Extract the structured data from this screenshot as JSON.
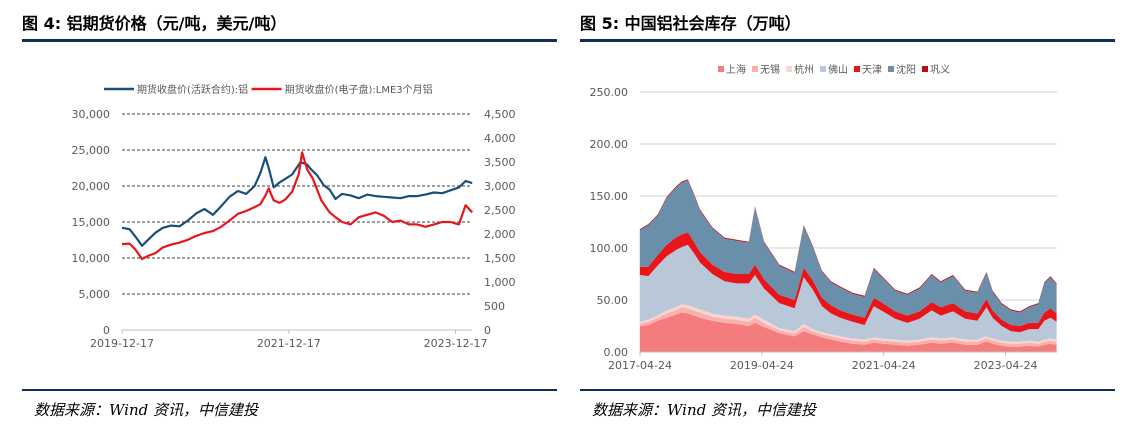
{
  "left_panel": {
    "title": "图 4: 铝期货价格（元/吨，美元/吨）",
    "source": "数据来源：Wind 资讯，中信建投"
  },
  "right_panel": {
    "title": "图 5: 中国铝社会库存（万吨）",
    "source": "数据来源：Wind 资讯，中信建投"
  },
  "chart_data": [
    {
      "type": "line",
      "title": "",
      "dual_axis": true,
      "x_tick_labels": [
        "2019-12-17",
        "2021-12-17",
        "2023-12-17"
      ],
      "x_range": [
        "2019-12-17",
        "2024-02-28"
      ],
      "y_left_ticks": [
        "30,000",
        "25,000",
        "20,000",
        "15,000",
        "10,000",
        "5,000",
        "0"
      ],
      "y_left_lim": [
        0,
        30000
      ],
      "y_right_ticks": [
        "4,500",
        "4,000",
        "3,500",
        "3,000",
        "2,500",
        "2,000",
        "1,500",
        "1,000",
        "500",
        "0"
      ],
      "y_right_lim": [
        0,
        4500
      ],
      "grid": "dashed-horizontal",
      "legend": "top",
      "series": [
        {
          "name": "期货收盘价(活跃合约):铝",
          "axis": "left",
          "color": "#1a4f7a",
          "x": [
            2019.96,
            2020.05,
            2020.12,
            2020.2,
            2020.28,
            2020.36,
            2020.45,
            2020.55,
            2020.65,
            2020.75,
            2020.85,
            2020.95,
            2021.05,
            2021.15,
            2021.25,
            2021.35,
            2021.45,
            2021.55,
            2021.62,
            2021.68,
            2021.72,
            2021.78,
            2021.85,
            2021.92,
            2022.0,
            2022.1,
            2022.18,
            2022.22,
            2022.3,
            2022.38,
            2022.45,
            2022.52,
            2022.6,
            2022.7,
            2022.8,
            2022.9,
            2023.0,
            2023.1,
            2023.2,
            2023.3,
            2023.4,
            2023.5,
            2023.6,
            2023.7,
            2023.8,
            2023.9,
            2024.0,
            2024.08,
            2024.16
          ],
          "values": [
            14200,
            14000,
            13000,
            11700,
            12600,
            13500,
            14200,
            14500,
            14400,
            15200,
            16200,
            16800,
            16000,
            17200,
            18500,
            19300,
            18900,
            20000,
            21800,
            24000,
            22500,
            19800,
            20500,
            21000,
            21600,
            23300,
            23000,
            22400,
            21500,
            20100,
            19500,
            18200,
            18900,
            18700,
            18300,
            18800,
            18600,
            18500,
            18400,
            18300,
            18600,
            18600,
            18800,
            19100,
            19000,
            19400,
            19800,
            20700,
            20400
          ]
        },
        {
          "name": "期货收盘价(电子盘):LME3个月铝",
          "axis": "right",
          "color": "#e8151b",
          "x": [
            2019.96,
            2020.05,
            2020.12,
            2020.2,
            2020.28,
            2020.36,
            2020.45,
            2020.55,
            2020.65,
            2020.75,
            2020.85,
            2020.95,
            2021.05,
            2021.15,
            2021.25,
            2021.35,
            2021.45,
            2021.55,
            2021.62,
            2021.68,
            2021.72,
            2021.78,
            2021.85,
            2021.92,
            2022.0,
            2022.08,
            2022.12,
            2022.18,
            2022.25,
            2022.35,
            2022.45,
            2022.52,
            2022.6,
            2022.7,
            2022.8,
            2022.9,
            2023.0,
            2023.1,
            2023.2,
            2023.3,
            2023.4,
            2023.5,
            2023.6,
            2023.7,
            2023.8,
            2023.9,
            2024.0,
            2024.08,
            2024.16
          ],
          "values": [
            1790,
            1800,
            1680,
            1480,
            1550,
            1600,
            1720,
            1780,
            1820,
            1880,
            1960,
            2020,
            2060,
            2150,
            2280,
            2420,
            2480,
            2560,
            2620,
            2800,
            2950,
            2700,
            2650,
            2720,
            2880,
            3250,
            3700,
            3350,
            3150,
            2700,
            2450,
            2350,
            2250,
            2200,
            2350,
            2400,
            2450,
            2380,
            2250,
            2280,
            2200,
            2200,
            2150,
            2200,
            2250,
            2250,
            2200,
            2600,
            2450
          ]
        }
      ]
    },
    {
      "type": "area",
      "stacked": true,
      "title": "",
      "x_tick_labels": [
        "2017-04-24",
        "2019-04-24",
        "2021-04-24",
        "2023-04-24"
      ],
      "x_range": [
        "2017-04-24",
        "2024-02-28"
      ],
      "y_ticks": [
        "250.00",
        "200.00",
        "150.00",
        "100.00",
        "50.00",
        "0.00"
      ],
      "ylim": [
        0,
        250
      ],
      "grid": "solid-horizontal",
      "legend": "top",
      "x": [
        2017.31,
        2017.45,
        2017.6,
        2017.75,
        2017.9,
        2018.0,
        2018.1,
        2018.2,
        2018.3,
        2018.5,
        2018.7,
        2018.9,
        2019.1,
        2019.2,
        2019.35,
        2019.6,
        2019.85,
        2020.0,
        2020.15,
        2020.3,
        2020.45,
        2020.6,
        2020.8,
        2021.0,
        2021.15,
        2021.3,
        2021.5,
        2021.7,
        2021.9,
        2022.1,
        2022.25,
        2022.45,
        2022.65,
        2022.85,
        2023.0,
        2023.1,
        2023.25,
        2023.4,
        2023.55,
        2023.7,
        2023.85,
        2023.95,
        2024.05,
        2024.15
      ],
      "series": [
        {
          "name": "上海",
          "color": "#f47c7c",
          "values": [
            25,
            26,
            30,
            33,
            36,
            38,
            37,
            35,
            33,
            30,
            28,
            27,
            25,
            28,
            24,
            18,
            15,
            20,
            17,
            14,
            12,
            10,
            8,
            7,
            9,
            8,
            7,
            6,
            7,
            9,
            8,
            9,
            7,
            7,
            10,
            8,
            6,
            5,
            5,
            6,
            5,
            7,
            8,
            7
          ]
        },
        {
          "name": "无锡",
          "color": "#f5b2ae",
          "values": [
            2,
            3,
            3,
            4,
            4,
            5,
            5,
            5,
            5,
            4,
            4,
            4,
            4,
            5,
            4,
            3,
            3,
            4,
            3,
            3,
            3,
            3,
            3,
            3,
            3,
            3,
            3,
            3,
            3,
            3,
            3,
            3,
            3,
            3,
            3,
            3,
            3,
            3,
            3,
            3,
            3,
            3,
            3,
            3
          ]
        },
        {
          "name": "杭州",
          "color": "#fbd3cf",
          "values": [
            2,
            2,
            2,
            3,
            3,
            3,
            3,
            3,
            3,
            3,
            3,
            3,
            3,
            3,
            3,
            2,
            2,
            3,
            2,
            2,
            2,
            2,
            2,
            2,
            2,
            2,
            2,
            2,
            2,
            2,
            2,
            2,
            2,
            2,
            2,
            2,
            2,
            2,
            2,
            2,
            2,
            2,
            2,
            2
          ]
        },
        {
          "name": "佛山",
          "color": "#b8c8d8",
          "values": [
            45,
            42,
            48,
            52,
            55,
            55,
            58,
            52,
            45,
            38,
            33,
            32,
            34,
            38,
            30,
            24,
            22,
            45,
            38,
            25,
            20,
            18,
            16,
            14,
            30,
            26,
            20,
            17,
            20,
            26,
            22,
            25,
            20,
            18,
            28,
            20,
            14,
            10,
            9,
            11,
            12,
            18,
            20,
            17
          ]
        },
        {
          "name": "天津",
          "color": "#e8151b",
          "values": [
            8,
            9,
            10,
            11,
            12,
            12,
            12,
            11,
            10,
            9,
            9,
            9,
            9,
            10,
            9,
            8,
            8,
            9,
            9,
            8,
            8,
            7,
            7,
            7,
            8,
            8,
            7,
            7,
            7,
            8,
            8,
            8,
            7,
            7,
            8,
            7,
            6,
            6,
            6,
            6,
            6,
            8,
            9,
            8
          ]
        },
        {
          "name": "沈阳",
          "color": "#6a8fab",
          "values": [
            35,
            40,
            38,
            45,
            48,
            50,
            50,
            45,
            40,
            35,
            32,
            32,
            30,
            55,
            35,
            28,
            26,
            40,
            32,
            25,
            22,
            22,
            20,
            20,
            28,
            24,
            20,
            20,
            22,
            26,
            24,
            26,
            20,
            20,
            25,
            18,
            15,
            14,
            13,
            15,
            18,
            28,
            30,
            28
          ]
        },
        {
          "name": "巩义",
          "color": "#b5101a",
          "values": [
            1,
            1,
            1,
            1,
            1,
            1,
            1,
            1,
            1,
            1,
            1,
            1,
            1,
            1,
            1,
            1,
            1,
            1,
            1,
            1,
            1,
            1,
            1,
            1,
            1,
            1,
            1,
            1,
            1,
            1,
            1,
            1,
            1,
            1,
            1,
            1,
            1,
            1,
            1,
            1,
            1,
            1,
            1,
            1
          ]
        }
      ],
      "totals_approx": [
        118,
        123,
        132,
        149,
        159,
        164,
        166,
        152,
        137,
        120,
        110,
        108,
        106,
        140,
        106,
        84,
        77,
        122,
        102,
        78,
        68,
        63,
        57,
        54,
        81,
        72,
        60,
        56,
        62,
        75,
        68,
        74,
        60,
        58,
        77,
        59,
        47,
        41,
        39,
        44,
        47,
        67,
        73,
        66
      ]
    }
  ]
}
